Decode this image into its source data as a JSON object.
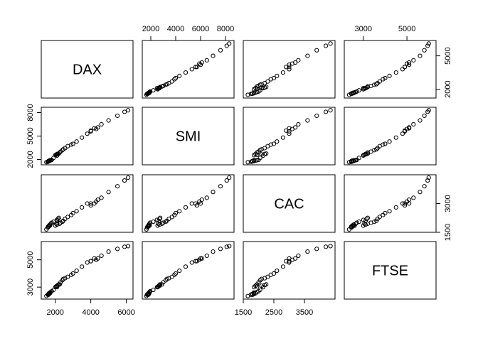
{
  "chart_data": {
    "type": "scatter-matrix",
    "variables": [
      {
        "name": "DAX",
        "lim": [
          1211,
          6377
        ],
        "hticks": [
          2000,
          4000,
          6000
        ],
        "vticks": [
          2000,
          5000
        ],
        "values": [
          1500,
          1580,
          1620,
          1650,
          1600,
          1700,
          1750,
          1800,
          1650,
          1620,
          1700,
          1900,
          2100,
          2200,
          2150,
          2100,
          2050,
          2000,
          2100,
          2250,
          2300,
          2400,
          2450,
          2550,
          2700,
          2900,
          3000,
          3200,
          3500,
          3800,
          4000,
          4300,
          4400,
          4000,
          4200,
          4600,
          5000,
          5500,
          5900,
          6100
        ]
      },
      {
        "name": "SMI",
        "lim": [
          1314,
          8685
        ],
        "hticks": [
          2000,
          4000,
          6000,
          8000
        ],
        "vticks": [
          2000,
          5000,
          8000
        ],
        "values": [
          1650,
          1700,
          1750,
          1800,
          1750,
          1850,
          1900,
          1950,
          1850,
          1800,
          1900,
          2200,
          2500,
          2750,
          2700,
          2650,
          2600,
          2550,
          2700,
          2900,
          3000,
          3200,
          3300,
          3450,
          3700,
          3900,
          4000,
          4300,
          4800,
          5300,
          5600,
          5900,
          6100,
          5700,
          6000,
          6500,
          7000,
          7600,
          8100,
          8300
        ]
      },
      {
        "name": "CAC",
        "lim": [
          1500,
          4499
        ],
        "hticks": [
          1500,
          2500,
          3500
        ],
        "vticks": [
          1500,
          3000
        ],
        "values": [
          1650,
          1750,
          1800,
          1850,
          1800,
          1900,
          1950,
          2000,
          1850,
          1800,
          1850,
          2050,
          2150,
          2250,
          2200,
          2100,
          1950,
          1850,
          1900,
          1950,
          2000,
          2050,
          2100,
          2200,
          2300,
          2400,
          2500,
          2600,
          2800,
          3000,
          3000,
          3100,
          3200,
          2900,
          3000,
          3300,
          3600,
          3900,
          4200,
          4350
        ]
      },
      {
        "name": "FTSE",
        "lim": [
          2125,
          6335
        ],
        "hticks": [
          3000,
          5000
        ],
        "vticks": [
          3000,
          5000
        ],
        "values": [
          2350,
          2450,
          2500,
          2550,
          2450,
          2550,
          2650,
          2700,
          2500,
          2450,
          2600,
          2800,
          3000,
          3200,
          3150,
          3100,
          3050,
          3000,
          3100,
          3200,
          3350,
          3500,
          3600,
          3650,
          3750,
          3900,
          4000,
          4200,
          4500,
          4800,
          4900,
          5000,
          5100,
          4900,
          5100,
          5300,
          5600,
          5800,
          5950,
          6000
        ]
      }
    ]
  }
}
